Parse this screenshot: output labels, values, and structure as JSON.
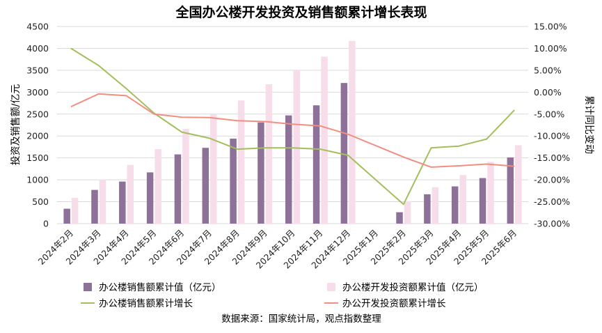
{
  "chart_data": {
    "type": "bar",
    "title": "全国办公楼开发投资及销售额累计增长表现",
    "ylabel": "投资及销售额/亿元",
    "y2label": "累计同比变动",
    "source": "数据来源：国家统计局，观点指数整理",
    "ylim": [
      0,
      4500
    ],
    "y2lim": [
      -30,
      15
    ],
    "y_ticks": [
      0,
      500,
      1000,
      1500,
      2000,
      2500,
      3000,
      3500,
      4000,
      4500
    ],
    "y2_ticks": [
      15,
      10,
      5,
      0,
      -5,
      -10,
      -15,
      -20,
      -25,
      -30
    ],
    "y_tick_labels": [
      "0",
      "500",
      "1000",
      "1500",
      "2000",
      "2500",
      "3000",
      "3500",
      "4000",
      "4500"
    ],
    "y2_tick_labels": [
      "15.00%",
      "10.00%",
      "5.00%",
      "0.00%",
      "-5.00%",
      "-10.00%",
      "-15.00%",
      "-20.00%",
      "-25.00%",
      "-30.00%"
    ],
    "categories": [
      "2024年2月",
      "2024年3月",
      "2024年4月",
      "2024年5月",
      "2024年6月",
      "2024年7月",
      "2024年8月",
      "2024年9月",
      "2024年10月",
      "2024年11月",
      "2024年12月",
      "2025年1月",
      "2025年2月",
      "2025年3月",
      "2025年4月",
      "2025年5月",
      "2025年6月"
    ],
    "series": [
      {
        "name": "办公楼销售额累计值（亿元）",
        "type": "bar",
        "axis": "left",
        "color": "#8e7198",
        "values": [
          340,
          770,
          960,
          1170,
          1580,
          1730,
          1940,
          2310,
          2470,
          2700,
          3210,
          null,
          260,
          670,
          850,
          1040,
          1510
        ]
      },
      {
        "name": "办公楼开发投资额累计值（亿元）",
        "type": "bar",
        "axis": "left",
        "color": "#f7dde9",
        "values": [
          590,
          1010,
          1340,
          1700,
          2160,
          2490,
          2810,
          3180,
          3510,
          3810,
          4170,
          null,
          510,
          830,
          1110,
          1410,
          1790
        ]
      },
      {
        "name": "办公楼销售额累计增长",
        "type": "line",
        "axis": "right",
        "color": "#a2bf5c",
        "values": [
          10.0,
          6.1,
          0.8,
          -4.8,
          -9.1,
          -10.5,
          -13.0,
          -12.7,
          -12.7,
          -13.0,
          -14.4,
          null,
          -25.6,
          -12.7,
          -12.3,
          -10.7,
          -4.1
        ]
      },
      {
        "name": "办公开发投资额累计增长",
        "type": "line",
        "axis": "right",
        "color": "#f28e80",
        "values": [
          -3.3,
          -0.4,
          -0.8,
          -5.0,
          -5.7,
          -5.8,
          -6.5,
          -6.7,
          -7.3,
          -7.7,
          -9.6,
          null,
          -14.8,
          -17.1,
          -16.8,
          -16.4,
          -16.9
        ]
      }
    ]
  }
}
